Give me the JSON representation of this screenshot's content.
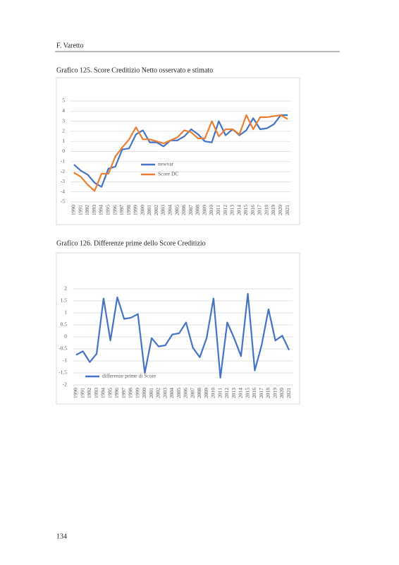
{
  "header": {
    "author": "F. Varetto"
  },
  "page_number": "134",
  "chart_data": [
    {
      "type": "line",
      "title": "Grafico 125. Score Creditizio Netto osservato e stimato",
      "categories": [
        "1990",
        "1991",
        "1992",
        "1993",
        "1994",
        "1995",
        "1996",
        "1997",
        "1998",
        "1999",
        "2000",
        "2001",
        "2002",
        "2003",
        "2004",
        "2005",
        "2006",
        "2007",
        "2008",
        "2009",
        "2010",
        "2011",
        "2012",
        "2013",
        "2014",
        "2015",
        "2016",
        "2017",
        "2018",
        "2019",
        "2020",
        "2021"
      ],
      "series": [
        {
          "name": "newvar",
          "color": "#4472c4",
          "values": [
            -1.3,
            -1.9,
            -2.3,
            -3.1,
            -3.5,
            -1.7,
            -1.5,
            0.2,
            0.3,
            1.7,
            2.1,
            0.9,
            0.9,
            0.5,
            1.1,
            1.1,
            1.5,
            2.2,
            1.7,
            1.0,
            0.9,
            3.0,
            1.6,
            2.2,
            1.6,
            2.1,
            3.3,
            2.2,
            2.3,
            2.7,
            3.6,
            3.6
          ]
        },
        {
          "name": "Score DC",
          "color": "#ed7d31",
          "values": [
            -2.1,
            -2.5,
            -3.3,
            -3.9,
            -2.2,
            -2.2,
            -0.5,
            0.4,
            1.2,
            2.4,
            1.2,
            1.2,
            1.0,
            0.8,
            1.1,
            1.4,
            2.1,
            1.9,
            1.3,
            1.3,
            3.0,
            1.5,
            2.2,
            2.2,
            1.7,
            3.6,
            2.2,
            3.4,
            3.4,
            3.5,
            3.6,
            3.2
          ]
        }
      ],
      "ylim": [
        -5,
        5
      ],
      "yticks": [
        -5,
        -4,
        -3,
        -2,
        -1,
        0,
        1,
        2,
        3,
        4,
        5
      ],
      "grid": true,
      "legend": "center"
    },
    {
      "type": "line",
      "title": "Grafico 126. Differenze prime dello Score Creditizio",
      "categories": [
        "1990",
        "1991",
        "1992",
        "1993",
        "1994",
        "1995",
        "1996",
        "1997",
        "1998",
        "1999",
        "2000",
        "2001",
        "2002",
        "2003",
        "2004",
        "2005",
        "2006",
        "2007",
        "2008",
        "2009",
        "2010",
        "2011",
        "2012",
        "2013",
        "2014",
        "2015",
        "2016",
        "2017",
        "2018",
        "2019",
        "2020",
        "2021"
      ],
      "series": [
        {
          "name": "differenze prime di Score",
          "color": "#4472c4",
          "values": [
            -0.75,
            -0.6,
            -1.05,
            -0.7,
            1.6,
            -0.15,
            1.65,
            0.75,
            0.8,
            0.95,
            -1.5,
            -0.05,
            -0.4,
            -0.35,
            0.1,
            0.15,
            0.6,
            -0.45,
            -0.85,
            -0.05,
            1.6,
            -1.7,
            0.6,
            -0.05,
            -0.8,
            1.8,
            -1.4,
            -0.35,
            1.15,
            -0.15,
            0.05,
            -0.55
          ]
        }
      ],
      "ylim": [
        -2,
        2
      ],
      "yticks": [
        -2,
        -1.5,
        -1,
        -0.5,
        0,
        0.5,
        1,
        1.5,
        2
      ],
      "grid": true,
      "legend": "lower left"
    }
  ]
}
